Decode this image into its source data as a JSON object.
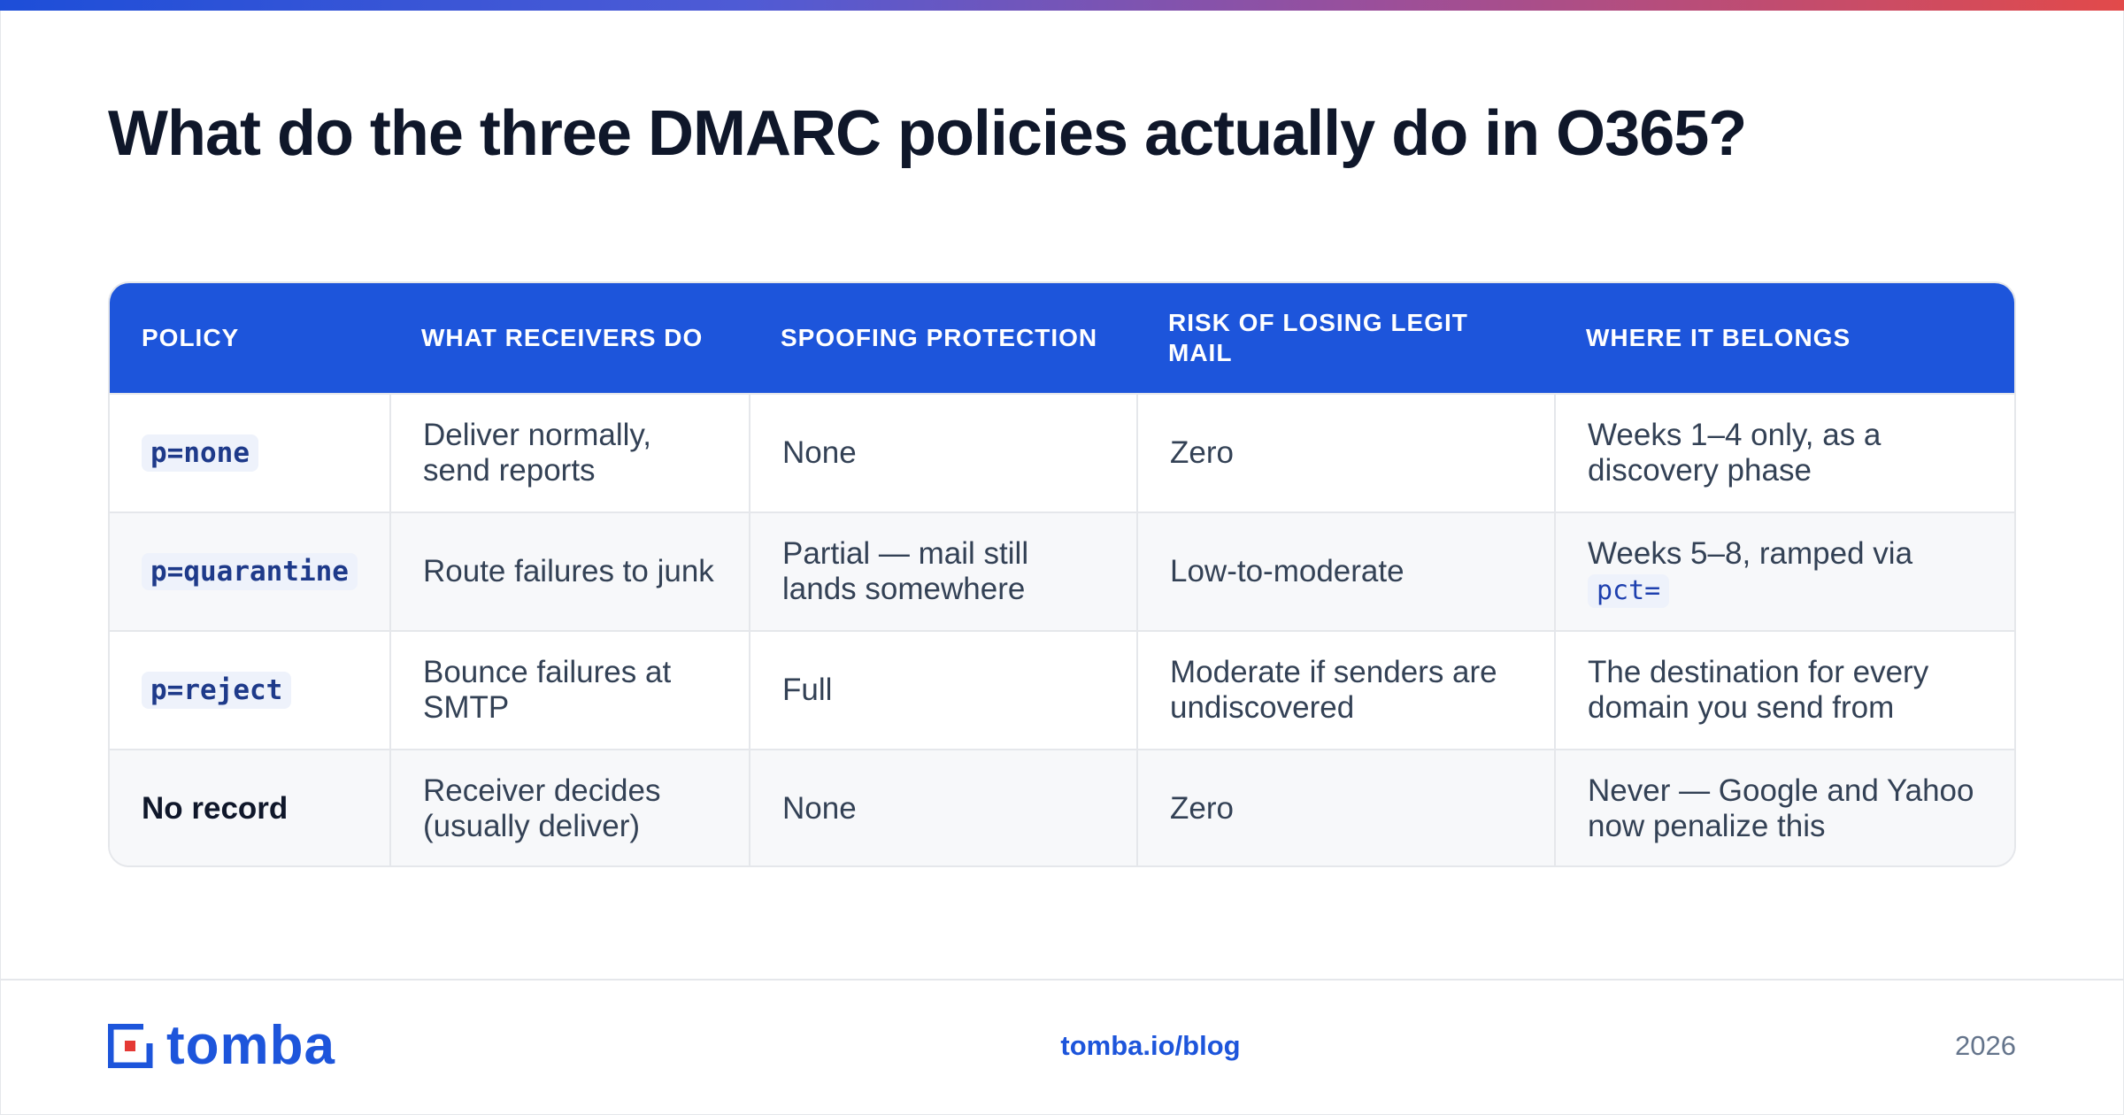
{
  "title": "What do the three DMARC policies actually do in O365?",
  "table": {
    "headers": [
      "POLICY",
      "WHAT RECEIVERS DO",
      "SPOOFING PROTECTION",
      "RISK OF LOSING LEGIT MAIL",
      "WHERE IT BELONGS"
    ],
    "rows": [
      {
        "policy": "p=none",
        "receivers": "Deliver normally, send reports",
        "spoofing": "None",
        "risk": "Zero",
        "belongs": "Weeks 1–4 only, as a discovery phase"
      },
      {
        "policy": "p=quarantine",
        "receivers": "Route failures to junk",
        "spoofing": "Partial — mail still lands somewhere",
        "risk": "Low-to-moderate",
        "belongs": "Weeks 5–8, ramped via",
        "belongs_code": "pct="
      },
      {
        "policy": "p=reject",
        "receivers": "Bounce failures at SMTP",
        "spoofing": "Full",
        "risk": "Moderate if senders are undiscovered",
        "belongs": "The destination for every domain you send from"
      },
      {
        "policy": "No record",
        "receivers": "Receiver decides (usually deliver)",
        "spoofing": "None",
        "risk": "Zero",
        "belongs": "Never — Google and Yahoo now penalize this"
      }
    ]
  },
  "footer": {
    "logo_text": "tomba",
    "link": "tomba.io/blog",
    "year": "2026"
  },
  "colors": {
    "accent": "#1d55db",
    "title": "#0f172a",
    "body_text": "#334155",
    "alt_row": "#f7f8fa"
  }
}
